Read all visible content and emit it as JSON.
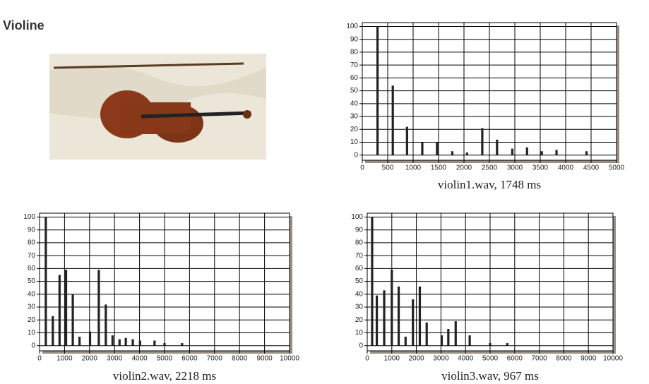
{
  "page": {
    "title": "Violine"
  },
  "chart_data": [
    {
      "type": "bar",
      "title": "violin1.wav, 1748 ms",
      "x": [
        300,
        600,
        880,
        1180,
        1470,
        1770,
        2060,
        2360,
        2650,
        2950,
        3240,
        3530,
        3820,
        4410
      ],
      "values": [
        100,
        54,
        22,
        10,
        10,
        3,
        2,
        21,
        12,
        5,
        6,
        3,
        4,
        3
      ],
      "color": "#222222",
      "xlim": [
        0,
        5000
      ],
      "xticks": [
        0,
        500,
        1000,
        1500,
        2000,
        2500,
        3000,
        3500,
        4000,
        4500,
        5000
      ],
      "ylim": [
        -4,
        103
      ],
      "yticks": [
        0,
        10,
        20,
        30,
        40,
        50,
        60,
        70,
        80,
        90,
        100
      ],
      "grid": true
    },
    {
      "type": "bar",
      "title": "violin2.wav, 2218 ms",
      "x": [
        250,
        530,
        800,
        1060,
        1330,
        1600,
        2020,
        2370,
        2650,
        2920,
        3200,
        3450,
        3730,
        4020,
        4600,
        5000,
        5700
      ],
      "values": [
        100,
        23,
        55,
        59,
        40,
        7,
        11,
        59,
        32,
        8,
        5,
        6,
        5,
        4,
        4,
        2,
        2
      ],
      "color": "#222222",
      "xlim": [
        0,
        10000
      ],
      "xticks": [
        0,
        1000,
        2000,
        3000,
        4000,
        5000,
        6000,
        7000,
        8000,
        9000,
        10000
      ],
      "ylim": [
        -4,
        103
      ],
      "yticks": [
        0,
        10,
        20,
        30,
        40,
        50,
        60,
        70,
        80,
        90,
        100
      ],
      "grid": true
    },
    {
      "type": "bar",
      "title": "violin3.wav, 967 ms",
      "x": [
        200,
        390,
        690,
        1000,
        1280,
        1560,
        1860,
        2140,
        2420,
        3030,
        3300,
        3600,
        4170,
        5000,
        5700
      ],
      "values": [
        100,
        39,
        43,
        59,
        46,
        7,
        36,
        46,
        18,
        8,
        13,
        19,
        8,
        2,
        2
      ],
      "color": "#222222",
      "xlim": [
        0,
        10000
      ],
      "xticks": [
        0,
        1000,
        2000,
        3000,
        4000,
        5000,
        6000,
        7000,
        8000,
        9000,
        10000
      ],
      "ylim": [
        -4,
        103
      ],
      "yticks": [
        0,
        10,
        20,
        30,
        40,
        50,
        60,
        70,
        80,
        90,
        100
      ],
      "grid": true
    }
  ]
}
